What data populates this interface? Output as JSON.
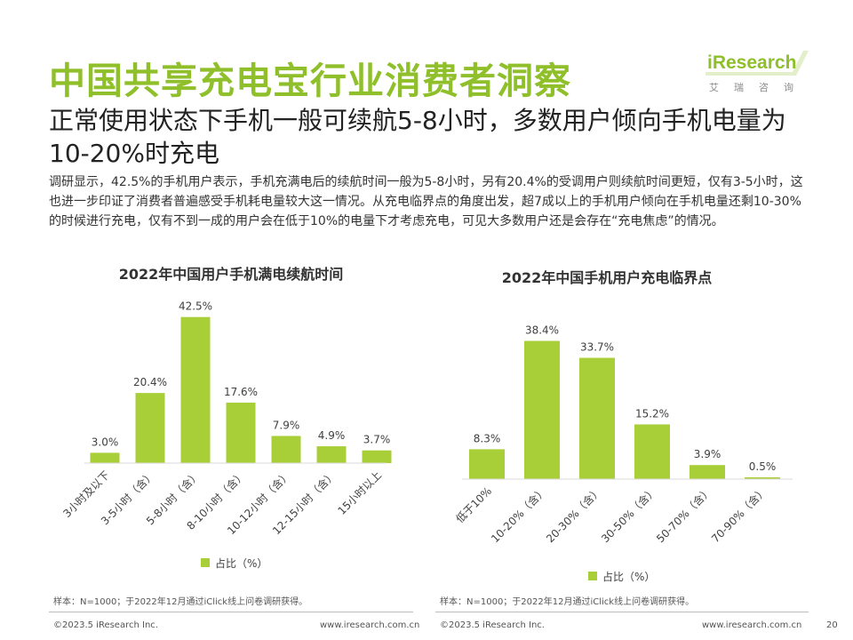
{
  "header": {
    "title": "中国共享充电宝行业消费者洞察",
    "subtitle": "正常使用状态下手机一般可续航5-8小时，多数用户倾向手机电量为10-20%时充电",
    "description": "调研显示，42.5%的手机用户表示，手机充满电后的续航时间一般为5-8小时，另有20.4%的受调用户则续航时间更短，仅有3-5小时，这也进一步印证了消费者普遍感受手机耗电量较大这一情况。从充电临界点的角度出发，超7成以上的手机用户倾向在手机电量还剩10-30%的时候进行充电，仅有不到一成的用户会在低于10%的电量下才考虑充电，可见大多数用户还是会存在“充电焦虑”的情况。"
  },
  "logo": {
    "brand": "iResearch",
    "brand_cn": "艾瑞咨询"
  },
  "colors": {
    "accent": "#8fbf2a",
    "bar": "#a9cf38"
  },
  "chart_data": [
    {
      "type": "bar",
      "title": "2022年中国用户手机满电续航时间",
      "categories": [
        "3小时及以下",
        "3-5小时（含）",
        "5-8小时（含）",
        "8-10小时（含）",
        "10-12小时（含）",
        "12-15小时（含）",
        "15小时以上"
      ],
      "series": [
        {
          "name": "占比（%）",
          "values": [
            3.0,
            20.4,
            42.5,
            17.6,
            7.9,
            4.9,
            3.7
          ]
        }
      ],
      "value_labels": [
        "3.0%",
        "20.4%",
        "42.5%",
        "17.6%",
        "7.9%",
        "4.9%",
        "3.7%"
      ],
      "ylim": [
        0,
        45
      ],
      "grid": false,
      "legend": "bottom"
    },
    {
      "type": "bar",
      "title": "2022年中国手机用户充电临界点",
      "categories": [
        "低于10%",
        "10-20%（含）",
        "20-30%（含）",
        "30-50%（含）",
        "50-70%（含）",
        "70-90%（含）"
      ],
      "series": [
        {
          "name": "占比（%）",
          "values": [
            8.3,
            38.4,
            33.7,
            15.2,
            3.9,
            0.5
          ]
        }
      ],
      "value_labels": [
        "8.3%",
        "38.4%",
        "33.7%",
        "15.2%",
        "3.9%",
        "0.5%"
      ],
      "ylim": [
        0,
        41
      ],
      "grid": false,
      "legend": "bottom"
    }
  ],
  "notes": {
    "left": "样本：N=1000；于2022年12月通过iClick线上问卷调研获得。",
    "right": "样本：N=1000；于2022年12月通过iClick线上问卷调研获得。"
  },
  "footer": {
    "copyright_left": "©2023.5 iResearch Inc.",
    "url_left": "www.iresearch.com.cn",
    "copyright_right": "©2023.5 iResearch Inc.",
    "url_right": "www.iresearch.com.cn",
    "page_number": "20"
  }
}
